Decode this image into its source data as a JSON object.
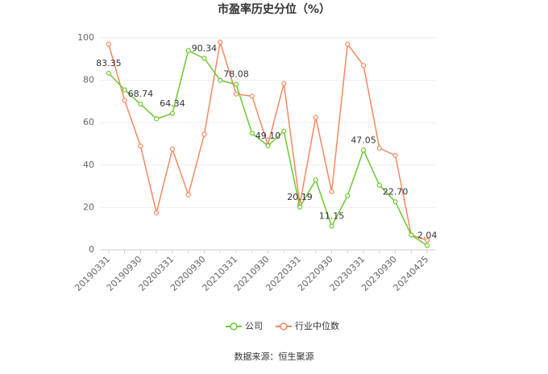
{
  "chart_data": {
    "type": "line",
    "title": "市盈率历史分位（%）",
    "categories": [
      "20190331",
      null,
      "20190930",
      null,
      "20200331",
      null,
      "20200930",
      null,
      "20210331",
      null,
      "20210930",
      null,
      "20220331",
      null,
      "20220930",
      null,
      "20230331",
      null,
      "20230930",
      null,
      "20240425"
    ],
    "series": [
      {
        "name": "公司",
        "color": "#6cc832",
        "values": [
          83.35,
          75.5,
          68.74,
          61.8,
          64.34,
          94,
          90.34,
          80,
          78.08,
          55,
          49.1,
          56,
          20.19,
          33,
          11.15,
          25.5,
          47.05,
          30.5,
          22.7,
          7,
          2.04
        ],
        "value_labels": [
          "83.35",
          null,
          "68.74",
          null,
          "64.34",
          null,
          "90.34",
          null,
          "78.08",
          null,
          "49.10",
          null,
          "20.19",
          null,
          "11.15",
          null,
          "47.05",
          null,
          "22.70",
          null,
          "2.04"
        ]
      },
      {
        "name": "行业中位数",
        "color": "#f4895f",
        "values": [
          97,
          70.5,
          49,
          17.5,
          47.5,
          26,
          54.5,
          98,
          73.5,
          72.5,
          49.5,
          78.5,
          21.5,
          62.5,
          27.5,
          97,
          87,
          48,
          44.5,
          7,
          4.5
        ]
      }
    ],
    "ylim": [
      0,
      100
    ],
    "yticks": [
      0,
      20,
      40,
      60,
      80,
      100
    ],
    "grid": true,
    "source": "数据来源：恒生聚源"
  }
}
